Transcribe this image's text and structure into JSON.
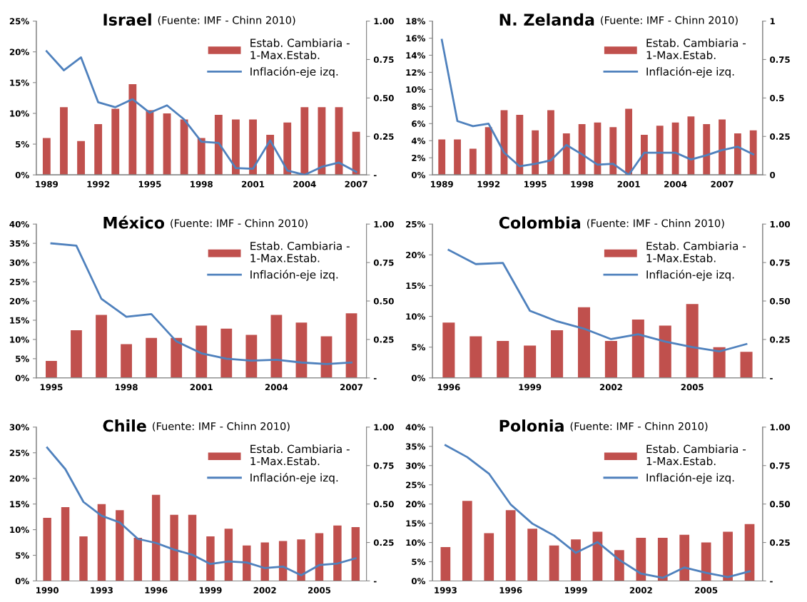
{
  "chart_data": [
    {
      "type": "bar",
      "title": "Israel",
      "subtitle": "(Fuente: IMF - Chinn 2010)",
      "categories": [
        "1989",
        null,
        null,
        "1992",
        null,
        null,
        "1995",
        null,
        null,
        "1998",
        null,
        null,
        "2001",
        null,
        null,
        "2004",
        null,
        null,
        "2007"
      ],
      "series": [
        {
          "name": "Estab. Cambiaria -\n1-Max.Estab.",
          "axis": "y2",
          "color": "#c0504d",
          "values": [
            0.24,
            0.44,
            0.22,
            0.33,
            0.43,
            0.59,
            0.42,
            0.4,
            0.36,
            0.24,
            0.39,
            0.36,
            0.36,
            0.26,
            0.34,
            0.44,
            0.44,
            0.44,
            0.28
          ]
        },
        {
          "name": "Inflación-eje izq.",
          "type": "line",
          "color": "#4f81bd",
          "values": [
            20.1,
            17.0,
            19.1,
            11.8,
            11.0,
            12.3,
            10.1,
            11.3,
            9.0,
            5.4,
            5.2,
            1.1,
            1.0,
            5.6,
            0.7,
            0,
            1.3,
            2.0,
            0.5
          ]
        }
      ],
      "ylim": [
        0,
        25
      ],
      "yticks": [
        {
          "value": 0,
          "label": "0%"
        },
        {
          "value": 5,
          "label": "5%"
        },
        {
          "value": 10,
          "label": "10%"
        },
        {
          "value": 15,
          "label": "15%"
        },
        {
          "value": 20,
          "label": "20%"
        },
        {
          "value": 25,
          "label": "25%"
        }
      ],
      "y2lim": [
        0,
        1
      ],
      "y2ticks": [
        {
          "value": 0,
          "label": "-"
        },
        0.25,
        {
          "value": 0.5,
          "label": "0.50"
        },
        0.75,
        {
          "value": 1,
          "label": "1.00"
        }
      ],
      "legend": "top right"
    },
    {
      "type": "bar",
      "title": "N. Zelanda",
      "subtitle": "(Fuente: IMF - Chinn 2010)",
      "categories": [
        "1989",
        null,
        null,
        "1992",
        null,
        null,
        "1995",
        null,
        null,
        "1998",
        null,
        null,
        "2001",
        null,
        null,
        "2004",
        null,
        null,
        "2007",
        null,
        null
      ],
      "series": [
        {
          "name": "Estab. Cambiaria -\n1-Max.Estab.",
          "axis": "y2",
          "color": "#c0504d",
          "values": [
            0.23,
            0.23,
            0.17,
            0.31,
            0.42,
            0.39,
            0.29,
            0.42,
            0.27,
            0.33,
            0.34,
            0.31,
            0.43,
            0.26,
            0.32,
            0.34,
            0.38,
            0.33,
            0.36,
            0.27,
            0.29
          ]
        },
        {
          "name": "Inflación-eje izq.",
          "type": "line",
          "color": "#4f81bd",
          "values": [
            15.8,
            6.3,
            5.7,
            6.0,
            2.6,
            1.0,
            1.3,
            1.7,
            3.5,
            2.4,
            1.2,
            1.3,
            0.0,
            2.6,
            2.6,
            2.6,
            1.8,
            2.3,
            2.9,
            3.3,
            2.4
          ]
        }
      ],
      "ylim": [
        0,
        18
      ],
      "yticks": [
        {
          "value": 0,
          "label": "0%"
        },
        {
          "value": 2,
          "label": "2%"
        },
        {
          "value": 4,
          "label": "4%"
        },
        {
          "value": 6,
          "label": "6%"
        },
        {
          "value": 8,
          "label": "8%"
        },
        {
          "value": 10,
          "label": "10%"
        },
        {
          "value": 12,
          "label": "12%"
        },
        {
          "value": 14,
          "label": "14%"
        },
        {
          "value": 16,
          "label": "16%"
        },
        {
          "value": 18,
          "label": "18%"
        }
      ],
      "y2lim": [
        0,
        1
      ],
      "y2ticks": [
        0,
        0.25,
        0.5,
        0.75,
        1
      ],
      "legend": "top right"
    },
    {
      "type": "bar",
      "title": "México",
      "subtitle": "(Fuente: IMF - Chinn 2010)",
      "categories": [
        "1995",
        null,
        null,
        "1998",
        null,
        null,
        "2001",
        null,
        null,
        "2004",
        null,
        null,
        "2007"
      ],
      "series": [
        {
          "name": "Estab. Cambiaria -\n1-Max.Estab.",
          "axis": "y2",
          "color": "#c0504d",
          "values": [
            0.11,
            0.31,
            0.41,
            0.22,
            0.26,
            0.26,
            0.34,
            0.32,
            0.28,
            0.41,
            0.36,
            0.27,
            0.42
          ]
        },
        {
          "name": "Inflación-eje izq.",
          "type": "line",
          "color": "#4f81bd",
          "values": [
            35.0,
            34.4,
            20.6,
            15.9,
            16.6,
            9.5,
            6.4,
            5.0,
            4.5,
            4.7,
            4.0,
            3.6,
            4.0
          ]
        }
      ],
      "ylim": [
        0,
        40
      ],
      "yticks": [
        {
          "value": 0,
          "label": "0%"
        },
        {
          "value": 5,
          "label": "5%"
        },
        {
          "value": 10,
          "label": "10%"
        },
        {
          "value": 15,
          "label": "15%"
        },
        {
          "value": 20,
          "label": "20%"
        },
        {
          "value": 25,
          "label": "25%"
        },
        {
          "value": 30,
          "label": "30%"
        },
        {
          "value": 35,
          "label": "35%"
        },
        {
          "value": 40,
          "label": "40%"
        }
      ],
      "y2lim": [
        0,
        1
      ],
      "y2ticks": [
        {
          "value": 0,
          "label": "-"
        },
        0.25,
        {
          "value": 0.5,
          "label": "0.50"
        },
        0.75,
        {
          "value": 1,
          "label": "1.00"
        }
      ],
      "legend": "top right"
    },
    {
      "type": "bar",
      "title": "Colombia",
      "subtitle": "(Fuente: IMF - Chinn 2010)",
      "categories": [
        "1996",
        null,
        null,
        "1999",
        null,
        null,
        "2002",
        null,
        null,
        "2005",
        null,
        null
      ],
      "series": [
        {
          "name": "Estab. Cambiaria -\n1-Max.Estab.",
          "axis": "y2",
          "color": "#c0504d",
          "values": [
            0.36,
            0.27,
            0.24,
            0.21,
            0.31,
            0.46,
            0.24,
            0.38,
            0.34,
            0.48,
            0.2,
            0.17
          ]
        },
        {
          "name": "Inflación-eje izq.",
          "type": "line",
          "color": "#4f81bd",
          "values": [
            20.8,
            18.5,
            18.7,
            10.9,
            9.2,
            8.0,
            6.3,
            7.1,
            5.9,
            5.0,
            4.3,
            5.5
          ]
        }
      ],
      "ylim": [
        0,
        25
      ],
      "yticks": [
        {
          "value": 0,
          "label": "0%"
        },
        {
          "value": 5,
          "label": "5%"
        },
        {
          "value": 10,
          "label": "10%"
        },
        {
          "value": 15,
          "label": "15%"
        },
        {
          "value": 20,
          "label": "20%"
        },
        {
          "value": 25,
          "label": "25%"
        }
      ],
      "y2lim": [
        0,
        1
      ],
      "y2ticks": [
        {
          "value": 0,
          "label": "-"
        },
        0.25,
        {
          "value": 0.5,
          "label": "0.50"
        },
        0.75,
        {
          "value": 1,
          "label": "1.00"
        }
      ],
      "legend": "top right"
    },
    {
      "type": "bar",
      "title": "Chile",
      "subtitle": "(Fuente: IMF - Chinn 2010)",
      "categories": [
        "1990",
        null,
        null,
        "1993",
        null,
        null,
        "1996",
        null,
        null,
        "1999",
        null,
        null,
        "2002",
        null,
        null,
        "2005",
        null,
        null
      ],
      "series": [
        {
          "name": "Estab. Cambiaria -\n1-Max.Estab.",
          "axis": "y2",
          "color": "#c0504d",
          "values": [
            0.41,
            0.48,
            0.29,
            0.5,
            0.46,
            0.28,
            0.56,
            0.43,
            0.43,
            0.29,
            0.34,
            0.23,
            0.25,
            0.26,
            0.27,
            0.31,
            0.36,
            0.35
          ]
        },
        {
          "name": "Inflación-eje izq.",
          "type": "line",
          "color": "#4f81bd",
          "values": [
            26.0,
            21.8,
            15.4,
            12.7,
            11.4,
            8.2,
            7.4,
            6.1,
            5.1,
            3.3,
            3.8,
            3.6,
            2.5,
            2.8,
            1.1,
            3.1,
            3.4,
            4.4
          ]
        }
      ],
      "ylim": [
        0,
        30
      ],
      "yticks": [
        {
          "value": 0,
          "label": "0%"
        },
        {
          "value": 5,
          "label": "5%"
        },
        {
          "value": 10,
          "label": "10%"
        },
        {
          "value": 15,
          "label": "15%"
        },
        {
          "value": 20,
          "label": "20%"
        },
        {
          "value": 25,
          "label": "25%"
        },
        {
          "value": 30,
          "label": "30%"
        }
      ],
      "y2lim": [
        0,
        1
      ],
      "y2ticks": [
        {
          "value": 0,
          "label": "-"
        },
        0.25,
        {
          "value": 0.5,
          "label": "0.50"
        },
        0.75,
        {
          "value": 1,
          "label": "1.00"
        }
      ],
      "legend": "top right"
    },
    {
      "type": "bar",
      "title": "Polonia",
      "subtitle": "(Fuente: IMF - Chinn 2010)",
      "categories": [
        "1993",
        null,
        null,
        "1996",
        null,
        null,
        "1999",
        null,
        null,
        "2002",
        null,
        null,
        "2005",
        null,
        null
      ],
      "series": [
        {
          "name": "Estab. Cambiaria -\n1-Max.Estab.",
          "axis": "y2",
          "color": "#c0504d",
          "values": [
            0.22,
            0.52,
            0.31,
            0.46,
            0.34,
            0.23,
            0.27,
            0.32,
            0.2,
            0.28,
            0.28,
            0.3,
            0.25,
            0.32,
            0.37
          ]
        },
        {
          "name": "Inflación-eje izq.",
          "type": "line",
          "color": "#4f81bd",
          "values": [
            35.3,
            32.2,
            27.9,
            19.9,
            14.9,
            11.8,
            7.3,
            10.1,
            5.5,
            1.9,
            0.8,
            3.5,
            2.1,
            1.0,
            2.5
          ]
        }
      ],
      "ylim": [
        0,
        40
      ],
      "yticks": [
        {
          "value": 0,
          "label": "0%"
        },
        {
          "value": 5,
          "label": "5%"
        },
        {
          "value": 10,
          "label": "10%"
        },
        {
          "value": 15,
          "label": "15%"
        },
        {
          "value": 20,
          "label": "20%"
        },
        {
          "value": 25,
          "label": "25%"
        },
        {
          "value": 30,
          "label": "30%"
        },
        {
          "value": 35,
          "label": "35%"
        },
        {
          "value": 40,
          "label": "40%"
        }
      ],
      "y2lim": [
        0,
        1
      ],
      "y2ticks": [
        {
          "value": 0,
          "label": "-"
        },
        0.25,
        {
          "value": 0.5,
          "label": "0.50"
        },
        0.75,
        {
          "value": 1,
          "label": "1.00"
        }
      ],
      "legend": "top right"
    }
  ]
}
